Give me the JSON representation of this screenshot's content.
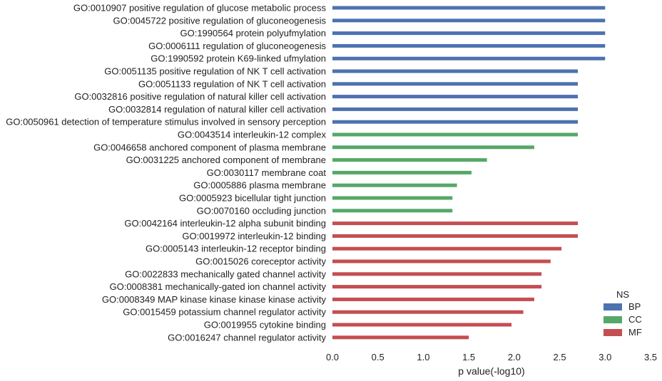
{
  "chart_data": {
    "type": "bar",
    "orientation": "horizontal",
    "xlabel": "p value(-log10)",
    "xlim": [
      0,
      3.5
    ],
    "xticks": [
      "0.0",
      "0.5",
      "1.0",
      "1.5",
      "2.0",
      "2.5",
      "3.0",
      "3.5"
    ],
    "grid": false,
    "legend": {
      "title": "NS",
      "placement": "lower-right",
      "entries": [
        {
          "name": "BP",
          "color": "#4c72b0"
        },
        {
          "name": "CC",
          "color": "#55a868"
        },
        {
          "name": "MF",
          "color": "#c44e52"
        }
      ]
    },
    "categories": [
      "GO:0010907 positive regulation of glucose metabolic process",
      "GO:0045722 positive regulation of gluconeogenesis",
      "GO:1990564 protein polyufmylation",
      "GO:0006111 regulation of gluconeogenesis",
      "GO:1990592 protein K69-linked ufmylation",
      "GO:0051135 positive regulation of NK T cell activation",
      "GO:0051133 regulation of NK T cell activation",
      "GO:0032816 positive regulation of natural killer cell activation",
      "GO:0032814 regulation of natural killer cell activation",
      "GO:0050961 detection of temperature stimulus involved in sensory perception",
      "GO:0043514 interleukin-12 complex",
      "GO:0046658 anchored component of plasma membrane",
      "GO:0031225 anchored component of membrane",
      "GO:0030117 membrane coat",
      "GO:0005886 plasma membrane",
      "GO:0005923 bicellular tight junction",
      "GO:0070160 occluding junction",
      "GO:0042164 interleukin-12 alpha subunit binding",
      "GO:0019972 interleukin-12 binding",
      "GO:0005143 interleukin-12 receptor binding",
      "GO:0015026 coreceptor activity",
      "GO:0022833 mechanically gated channel activity",
      "GO:0008381 mechanically-gated ion channel activity",
      "GO:0008349 MAP kinase kinase kinase kinase activity",
      "GO:0015459 potassium channel regulator activity",
      "GO:0019955 cytokine binding",
      "GO:0016247 channel regulator activity"
    ],
    "values": [
      3.0,
      3.0,
      3.0,
      3.0,
      3.0,
      2.7,
      2.7,
      2.7,
      2.7,
      2.7,
      2.7,
      2.22,
      1.7,
      1.53,
      1.37,
      1.32,
      1.32,
      2.7,
      2.7,
      2.52,
      2.4,
      2.3,
      2.3,
      2.22,
      2.1,
      1.97,
      1.5
    ],
    "ns": [
      "BP",
      "BP",
      "BP",
      "BP",
      "BP",
      "BP",
      "BP",
      "BP",
      "BP",
      "BP",
      "CC",
      "CC",
      "CC",
      "CC",
      "CC",
      "CC",
      "CC",
      "MF",
      "MF",
      "MF",
      "MF",
      "MF",
      "MF",
      "MF",
      "MF",
      "MF",
      "MF"
    ]
  }
}
